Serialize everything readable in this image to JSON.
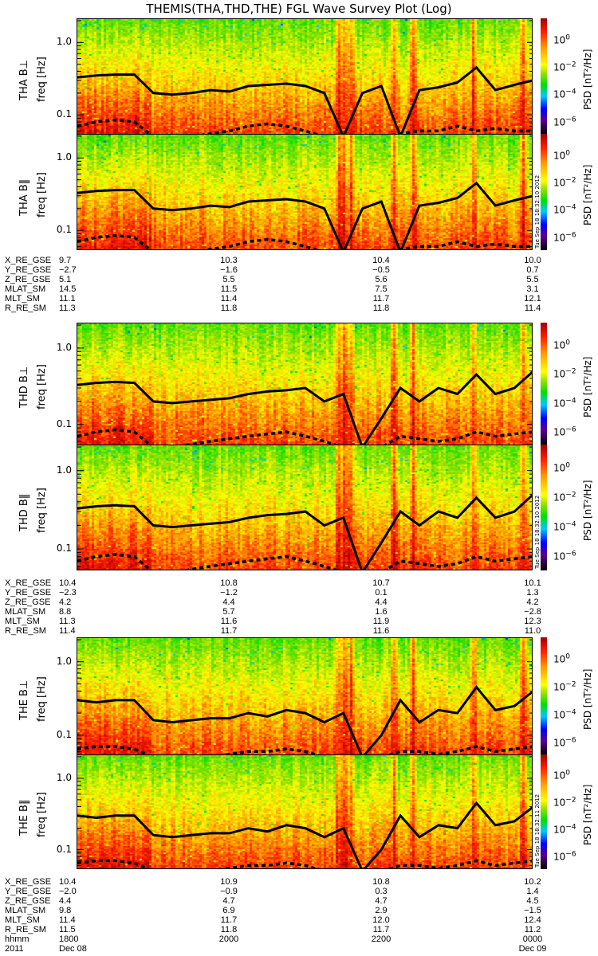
{
  "title": "THEMIS(THA,THD,THE) FGL Wave Survey Plot (Log)",
  "colormap": [
    "#000000",
    "#5a0090",
    "#0000ff",
    "#00c8ff",
    "#00e000",
    "#90e000",
    "#ffff00",
    "#ff9900",
    "#ff2000",
    "#b00000"
  ],
  "colorbar": {
    "label": "PSD [nT²/Hz]",
    "ticks": [
      {
        "base": "10",
        "exp": "0",
        "value": 0
      },
      {
        "base": "10",
        "exp": "−2",
        "value": -2
      },
      {
        "base": "10",
        "exp": "−4",
        "value": -4
      },
      {
        "base": "10",
        "exp": "−6",
        "value": -6
      }
    ],
    "range": [
      -7,
      1.5
    ]
  },
  "chart_data": {
    "type": "heatmap",
    "xlabel": "hhmm",
    "x_range_hours": [
      18,
      24
    ],
    "ylabel": "freq [Hz]",
    "yscale": "log",
    "ylim": [
      0.052,
      2.1
    ],
    "yticks": [
      "1.0",
      "0.1"
    ],
    "ytick_values": [
      1.0,
      0.1
    ],
    "time_hours": [
      0,
      0.25,
      0.5,
      0.75,
      1,
      1.25,
      1.5,
      1.75,
      2,
      2.25,
      2.5,
      2.75,
      3,
      3.25,
      3.5,
      3.75,
      4,
      4.25,
      4.5,
      4.75,
      5,
      5.25,
      5.5,
      5.75,
      6
    ],
    "panels": [
      {
        "probe": "THA",
        "label": "THA B⊥",
        "ylabel": "freq [Hz]",
        "stamp": "Tue Sep 18 18:32:10 2012",
        "line": "solid_THA",
        "dash": "dash_THA",
        "seed": 11
      },
      {
        "probe": "THA",
        "label": "THA B‖",
        "ylabel": "freq [Hz]",
        "stamp": "Tue Sep 18 18:32:10 2012",
        "line": "solid_THA",
        "dash": "dash_THA",
        "seed": 12
      },
      {
        "probe": "THD",
        "label": "THD B⊥",
        "ylabel": "freq [Hz]",
        "stamp": "Tue Sep 18 18:32:10 2012",
        "line": "solid_THD",
        "dash": "dash_THD",
        "seed": 21
      },
      {
        "probe": "THD",
        "label": "THD B‖",
        "ylabel": "freq [Hz]",
        "stamp": "Tue Sep 18 18:32:10 2012",
        "line": "solid_THD",
        "dash": "dash_THD",
        "seed": 22
      },
      {
        "probe": "THE",
        "label": "THE B⊥",
        "ylabel": "freq [Hz]",
        "stamp": "Tue Sep 18 18:32:11 2012",
        "line": "solid_THE",
        "dash": "dash_THE",
        "seed": 31
      },
      {
        "probe": "THE",
        "label": "THE B‖",
        "ylabel": "freq [Hz]",
        "stamp": "Tue Sep 18 18:32:11 2012",
        "line": "solid_THE",
        "dash": "dash_THE",
        "seed": 32
      }
    ],
    "series": {
      "solid_THA": [
        0.33,
        0.35,
        0.36,
        0.36,
        0.2,
        0.19,
        0.2,
        0.22,
        0.21,
        0.25,
        0.26,
        0.27,
        0.25,
        0.2,
        0.05,
        0.2,
        0.25,
        0.05,
        0.22,
        0.24,
        0.28,
        0.45,
        0.22,
        0.26,
        0.3
      ],
      "dash_THA": [
        0.07,
        0.08,
        0.085,
        0.08,
        0.05,
        0.05,
        0.05,
        0.055,
        0.06,
        0.07,
        0.075,
        0.07,
        0.06,
        0.05,
        0.05,
        0.05,
        0.05,
        0.055,
        0.06,
        0.06,
        0.07,
        0.06,
        0.065,
        0.06,
        0.06
      ],
      "solid_THD": [
        0.33,
        0.35,
        0.36,
        0.35,
        0.2,
        0.19,
        0.2,
        0.21,
        0.22,
        0.25,
        0.27,
        0.28,
        0.3,
        0.2,
        0.25,
        0.05,
        0.12,
        0.3,
        0.2,
        0.3,
        0.25,
        0.45,
        0.25,
        0.3,
        0.5
      ],
      "dash_THD": [
        0.07,
        0.08,
        0.085,
        0.08,
        0.05,
        0.05,
        0.055,
        0.06,
        0.065,
        0.07,
        0.075,
        0.08,
        0.07,
        0.06,
        0.05,
        0.05,
        0.05,
        0.07,
        0.065,
        0.06,
        0.065,
        0.08,
        0.07,
        0.075,
        0.08
      ],
      "solid_THE": [
        0.3,
        0.28,
        0.3,
        0.3,
        0.16,
        0.15,
        0.16,
        0.17,
        0.17,
        0.2,
        0.18,
        0.22,
        0.2,
        0.15,
        0.2,
        0.05,
        0.1,
        0.3,
        0.15,
        0.22,
        0.2,
        0.45,
        0.22,
        0.25,
        0.4
      ],
      "dash_THE": [
        0.065,
        0.07,
        0.07,
        0.065,
        0.05,
        0.05,
        0.05,
        0.05,
        0.055,
        0.06,
        0.06,
        0.065,
        0.06,
        0.05,
        0.05,
        0.05,
        0.05,
        0.06,
        0.06,
        0.055,
        0.06,
        0.07,
        0.06,
        0.065,
        0.07
      ]
    }
  },
  "ephemeris": [
    {
      "probe": "THA",
      "rows": [
        {
          "label": "X_RE_GSE",
          "values": [
            "9.7",
            "10.3",
            "10.4",
            "10.0"
          ]
        },
        {
          "label": "Y_RE_GSE",
          "values": [
            "−2.7",
            "−1.6",
            "−0.5",
            "0.7"
          ]
        },
        {
          "label": "Z_RE_GSE",
          "values": [
            "5.1",
            "5.5",
            "5.6",
            "5.5"
          ]
        },
        {
          "label": "MLAT_SM",
          "values": [
            "14.5",
            "11.5",
            "7.5",
            "3.1"
          ]
        },
        {
          "label": "MLT_SM",
          "values": [
            "11.1",
            "11.4",
            "11.7",
            "12.1"
          ]
        },
        {
          "label": "R_RE_SM",
          "values": [
            "11.3",
            "11.8",
            "11.8",
            "11.4"
          ]
        }
      ]
    },
    {
      "probe": "THD",
      "rows": [
        {
          "label": "X_RE_GSE",
          "values": [
            "10.4",
            "10.8",
            "10.7",
            "10.1"
          ]
        },
        {
          "label": "Y_RE_GSE",
          "values": [
            "−2.3",
            "−1.2",
            "0.1",
            "1.3"
          ]
        },
        {
          "label": "Z_RE_GSE",
          "values": [
            "4.2",
            "4.4",
            "4.4",
            "4.2"
          ]
        },
        {
          "label": "MLAT_SM",
          "values": [
            "8.8",
            "5.7",
            "1.6",
            "−2.8"
          ]
        },
        {
          "label": "MLT_SM",
          "values": [
            "11.3",
            "11.6",
            "11.9",
            "12.3"
          ]
        },
        {
          "label": "R_RE_SM",
          "values": [
            "11.4",
            "11.7",
            "11.6",
            "11.0"
          ]
        }
      ]
    },
    {
      "probe": "THE",
      "rows": [
        {
          "label": "X_RE_GSE",
          "values": [
            "10.4",
            "10.9",
            "10.8",
            "10.2"
          ]
        },
        {
          "label": "Y_RE_GSE",
          "values": [
            "−2.0",
            "−0.9",
            "0.3",
            "1.4"
          ]
        },
        {
          "label": "Z_RE_GSE",
          "values": [
            "4.4",
            "4.7",
            "4.7",
            "4.5"
          ]
        },
        {
          "label": "MLAT_SM",
          "values": [
            "9.8",
            "6.9",
            "2.9",
            "−1.5"
          ]
        },
        {
          "label": "MLT_SM",
          "values": [
            "11.4",
            "11.7",
            "12.0",
            "12.4"
          ]
        },
        {
          "label": "R_RE_SM",
          "values": [
            "11.5",
            "11.8",
            "11.7",
            "11.2"
          ]
        },
        {
          "label": "hhmm",
          "values": [
            "1800",
            "2000",
            "2200",
            "0000"
          ]
        },
        {
          "label": "2011",
          "values": [
            "Dec 08",
            "",
            "",
            "Dec 09"
          ]
        }
      ]
    }
  ]
}
